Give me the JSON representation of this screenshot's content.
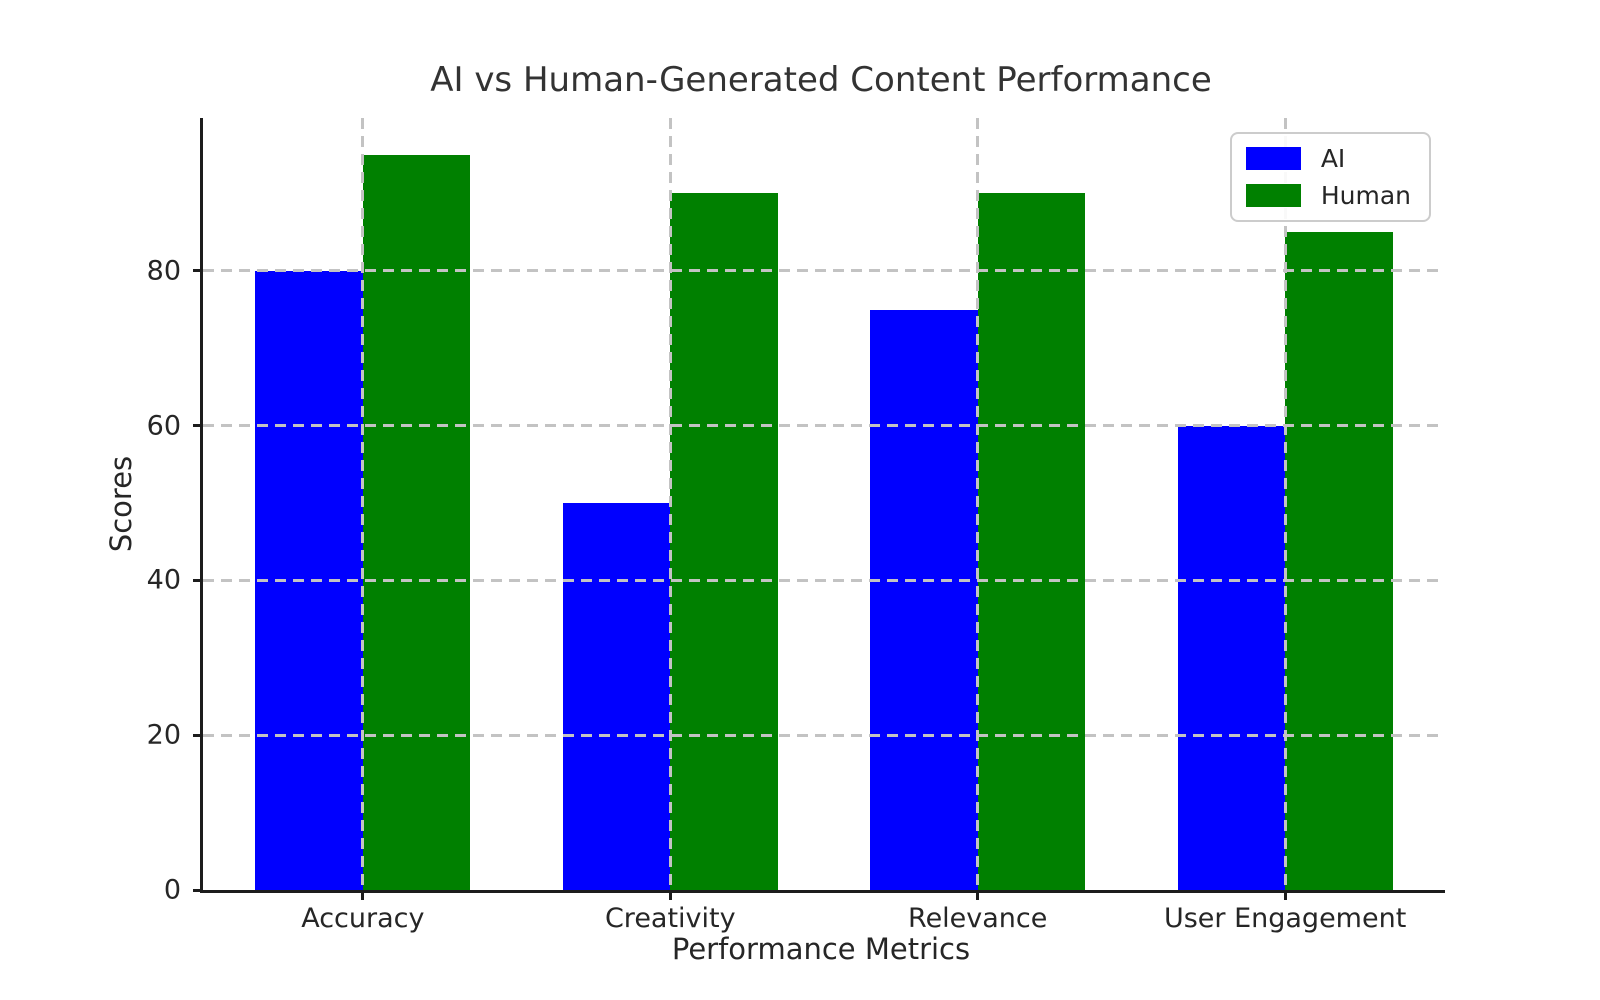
{
  "title": "AI vs Human-Generated Content Performance",
  "chart_data": {
    "type": "bar",
    "title": "AI vs Human-Generated Content Performance",
    "xlabel": "Performance Metrics",
    "ylabel": "Scores",
    "categories": [
      "Accuracy",
      "Creativity",
      "Relevance",
      "User Engagement"
    ],
    "series": [
      {
        "name": "AI",
        "color": "#0000ff",
        "values": [
          80,
          50,
          75,
          60
        ]
      },
      {
        "name": "Human",
        "color": "#008000",
        "values": [
          95,
          90,
          90,
          85
        ]
      }
    ],
    "yticks": [
      0,
      20,
      40,
      60,
      80
    ],
    "ylim": [
      0,
      100
    ],
    "grid": "dashed-both-axes-over-bars",
    "legend_position": "upper right",
    "bar_width_fraction": 0.35,
    "x_margin_fraction": 0.52
  },
  "colors": {
    "ai": "#0000ff",
    "human": "#008000",
    "grid": "#c3c3c3",
    "spine": "#1c1c1c",
    "title_text": "#333333",
    "tick_text": "#262626",
    "legend_border": "#cccccc",
    "background": "#ffffff"
  }
}
